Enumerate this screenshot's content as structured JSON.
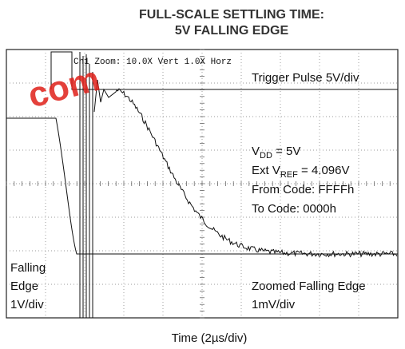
{
  "chart_data": {
    "type": "scope",
    "title": [
      "FULL-SCALE SETTLING TIME:",
      "5V FALLING EDGE"
    ],
    "watermark": "com",
    "header": "Ch1 Zoom:   10.0X Vert    1.0X Horz",
    "trigger_label": "Trigger Pulse 5V/div",
    "conditions": [
      {
        "main": "V",
        "sub": "DD",
        "rest": " = 5V"
      },
      {
        "main": "Ext V",
        "sub": "REF",
        "rest": " = 4.096V"
      },
      {
        "main": "From Code: FFFFh"
      },
      {
        "main": "To Code: 0000h"
      }
    ],
    "left_label": [
      "Falling",
      "Edge",
      "1V/div"
    ],
    "zoom_label": [
      "Zoomed Falling Edge",
      "1mV/div"
    ],
    "xlabel": "Time (2µs/div)"
  }
}
